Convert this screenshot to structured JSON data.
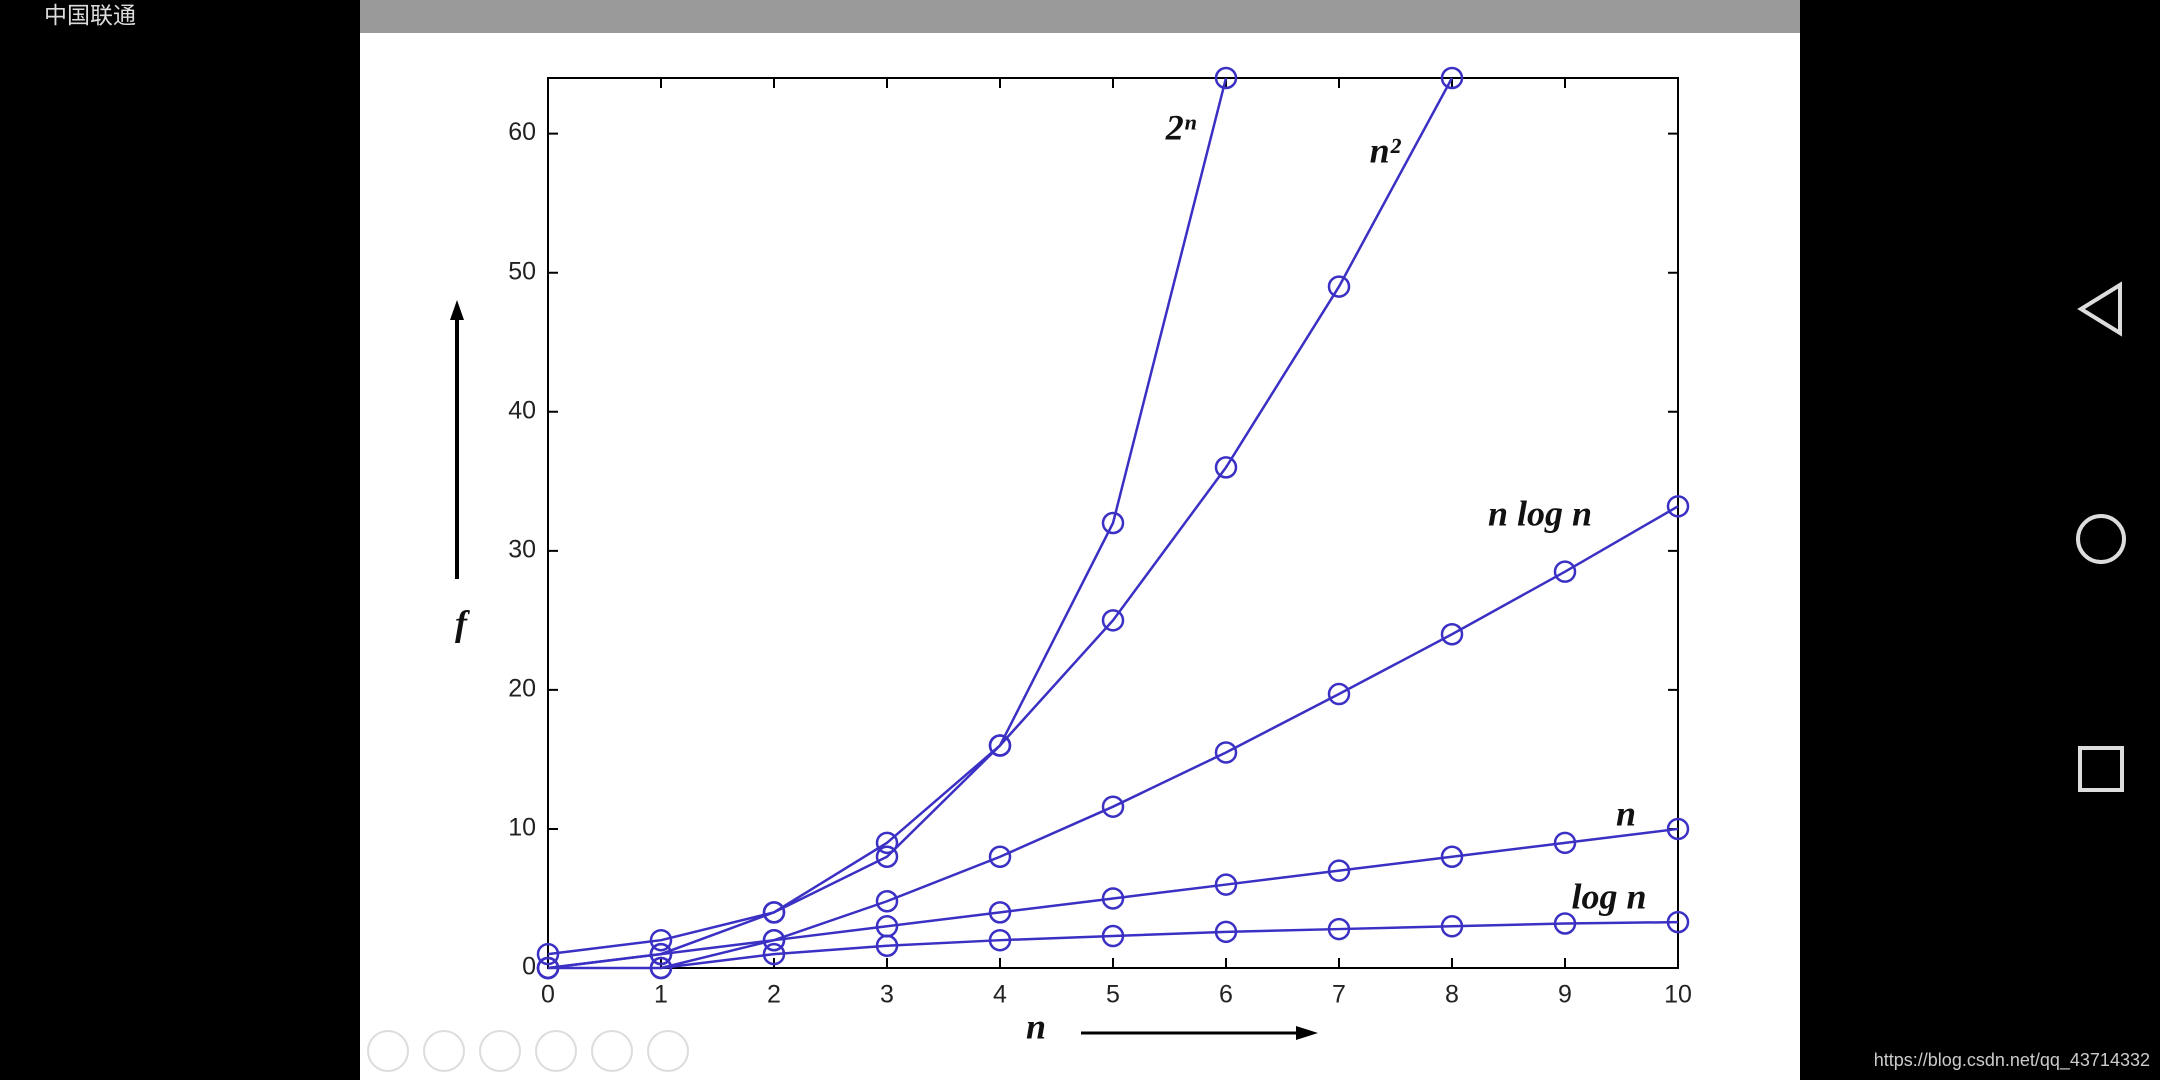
{
  "status_bar": {
    "carrier": "中国联通"
  },
  "watermark": "https://blog.csdn.net/qq_43714332",
  "chart_data": {
    "type": "line",
    "x_label": "n",
    "y_label": "f",
    "x": [
      0,
      1,
      2,
      3,
      4,
      5,
      6,
      7,
      8,
      9,
      10
    ],
    "xlim": [
      0,
      10
    ],
    "xticks": [
      0,
      1,
      2,
      3,
      4,
      5,
      6,
      7,
      8,
      9,
      10
    ],
    "ylim": [
      0,
      64
    ],
    "yticks": [
      0,
      10,
      20,
      30,
      40,
      50,
      60
    ],
    "series": [
      {
        "name": "2ⁿ",
        "color": "#3b30c4",
        "values": [
          1,
          2,
          4,
          8,
          16,
          32,
          64,
          null,
          null,
          null,
          null
        ]
      },
      {
        "name": "n²",
        "color": "#3b30c4",
        "values": [
          0,
          1,
          4,
          9,
          16,
          25,
          36,
          49,
          64,
          null,
          null
        ]
      },
      {
        "name": "n log n",
        "color": "#3b30c4",
        "values": [
          0,
          0,
          2,
          4.8,
          8,
          11.6,
          15.5,
          19.7,
          24,
          28.5,
          33.2
        ]
      },
      {
        "name": "n",
        "color": "#3b30c4",
        "values": [
          0,
          1,
          2,
          3,
          4,
          5,
          6,
          7,
          8,
          9,
          10
        ]
      },
      {
        "name": "log n",
        "color": "#3b30c4",
        "values": [
          null,
          0,
          1,
          1.6,
          2,
          2.3,
          2.6,
          2.8,
          3,
          3.2,
          3.3
        ]
      }
    ]
  }
}
